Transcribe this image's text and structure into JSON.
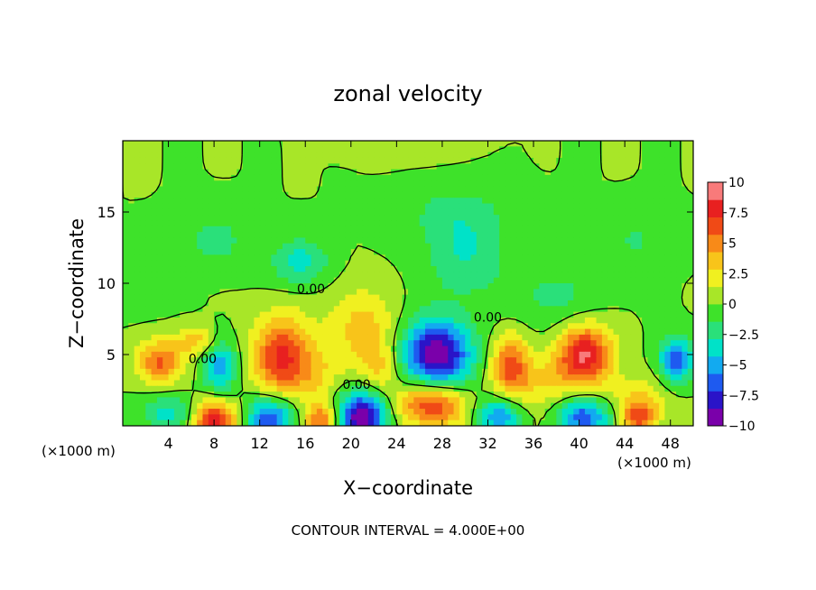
{
  "chart_data": {
    "type": "heatmap",
    "title": "zonal velocity",
    "xlabel": "X−coordinate",
    "ylabel": "Z−coordinate",
    "x_unit_left": "(×1000 m)",
    "x_unit_right": "(×1000 m)",
    "footer": "CONTOUR INTERVAL = 4.000E+00",
    "xlim": [
      0,
      50
    ],
    "ylim": [
      0,
      20
    ],
    "x_ticks": [
      4,
      8,
      12,
      16,
      20,
      24,
      28,
      32,
      36,
      40,
      44,
      48
    ],
    "y_ticks": [
      5,
      10,
      15
    ],
    "colorbar": {
      "min": -10,
      "max": 10,
      "levels": [
        -10,
        -7.5,
        -5,
        -2.5,
        0,
        2.5,
        5,
        7.5,
        10
      ],
      "labels": [
        "−10",
        "−7.5",
        "−5",
        "−2.5",
        "0",
        "2.5",
        "5",
        "7.5",
        "10"
      ],
      "colors": [
        "#7a00aa",
        "#2a14c8",
        "#1e5af0",
        "#12aaf0",
        "#00e2c8",
        "#2ae07a",
        "#3ee22a",
        "#a8e628",
        "#f0f020",
        "#f8c41a",
        "#f88a18",
        "#f04a16",
        "#e82020",
        "#f87a7a"
      ]
    },
    "contour_labels": [
      {
        "text": "0.00",
        "x": 16.5,
        "y": 9.3
      },
      {
        "text": "0.00",
        "x": 7,
        "y": 4.4
      },
      {
        "text": "0.00",
        "x": 20.5,
        "y": 2.6
      },
      {
        "text": "0.00",
        "x": 32,
        "y": 7.3
      }
    ],
    "features": [
      {
        "x": 27.5,
        "z": 5,
        "v": -10,
        "rx": 3.0,
        "rz": 2.4
      },
      {
        "x": 40.5,
        "z": 5,
        "v": 8.5,
        "rx": 2.4,
        "rz": 2.1
      },
      {
        "x": 14,
        "z": 4.8,
        "v": 7.5,
        "rx": 2.6,
        "rz": 2.8
      },
      {
        "x": 3.2,
        "z": 4.5,
        "v": 6,
        "rx": 2.0,
        "rz": 1.5
      },
      {
        "x": 6.5,
        "z": 6.0,
        "v": 3.5,
        "rx": 1.8,
        "rz": 1.0
      },
      {
        "x": 34,
        "z": 4.2,
        "v": 6,
        "rx": 1.7,
        "rz": 2.2
      },
      {
        "x": 8.5,
        "z": 4.2,
        "v": -5,
        "rx": 1.5,
        "rz": 1.9
      },
      {
        "x": 48.5,
        "z": 4.6,
        "v": -6.5,
        "rx": 1.5,
        "rz": 1.6
      },
      {
        "x": 21,
        "z": 0.6,
        "v": -10,
        "rx": 2.2,
        "rz": 1.8
      },
      {
        "x": 13,
        "z": 0.5,
        "v": -7,
        "rx": 2.2,
        "rz": 1.6
      },
      {
        "x": 33,
        "z": 0.7,
        "v": -5.5,
        "rx": 2.0,
        "rz": 1.3
      },
      {
        "x": 40.5,
        "z": 0.7,
        "v": -6.5,
        "rx": 2.5,
        "rz": 1.4
      },
      {
        "x": 4,
        "z": 0.8,
        "v": -3.5,
        "rx": 2.5,
        "rz": 1.3
      },
      {
        "x": 8,
        "z": 0.4,
        "v": 8,
        "rx": 2.0,
        "rz": 1.4
      },
      {
        "x": 17.5,
        "z": 0.4,
        "v": 6,
        "rx": 1.6,
        "rz": 1.2
      },
      {
        "x": 27,
        "z": 1.5,
        "v": 7.5,
        "rx": 3.0,
        "rz": 1.6
      },
      {
        "x": 45.3,
        "z": 0.6,
        "v": 6,
        "rx": 1.6,
        "rz": 1.1
      },
      {
        "x": 21,
        "z": 6.8,
        "v": 3.5,
        "rx": 3.0,
        "rz": 2.8
      },
      {
        "x": 22.5,
        "z": 4.0,
        "v": 3.0,
        "rx": 1.6,
        "rz": 1.8
      },
      {
        "x": 37,
        "z": 3.0,
        "v": 2.5,
        "rx": 3.0,
        "rz": 2.0
      },
      {
        "x": 45,
        "z": 2.0,
        "v": 2.5,
        "rx": 3.0,
        "rz": 1.6
      },
      {
        "x": 17,
        "z": 3.5,
        "v": 2.0,
        "rx": 2.0,
        "rz": 1.8
      },
      {
        "x": 30,
        "z": 12.0,
        "v": -2.8,
        "rx": 3.5,
        "rz": 3.0
      },
      {
        "x": 15.5,
        "z": 11.5,
        "v": -3.5,
        "rx": 2.5,
        "rz": 1.6
      },
      {
        "x": 8,
        "z": 13.0,
        "v": -2.0,
        "rx": 3.0,
        "rz": 2.0
      },
      {
        "x": 38,
        "z": 9.0,
        "v": -1.8,
        "rx": 4.0,
        "rz": 2.5
      },
      {
        "x": 45,
        "z": 13.0,
        "v": -1.5,
        "rx": 3.0,
        "rz": 2.0
      },
      {
        "x": 29,
        "z": 15.0,
        "v": -1.5,
        "rx": 5.0,
        "rz": 2.0
      },
      {
        "x": 2,
        "z": 10.0,
        "v": -1.2,
        "rx": 2.0,
        "rz": 2.0
      },
      {
        "x": 25,
        "z": 19.5,
        "v": 1.0,
        "rx": 4.0,
        "rz": 1.0
      }
    ]
  }
}
